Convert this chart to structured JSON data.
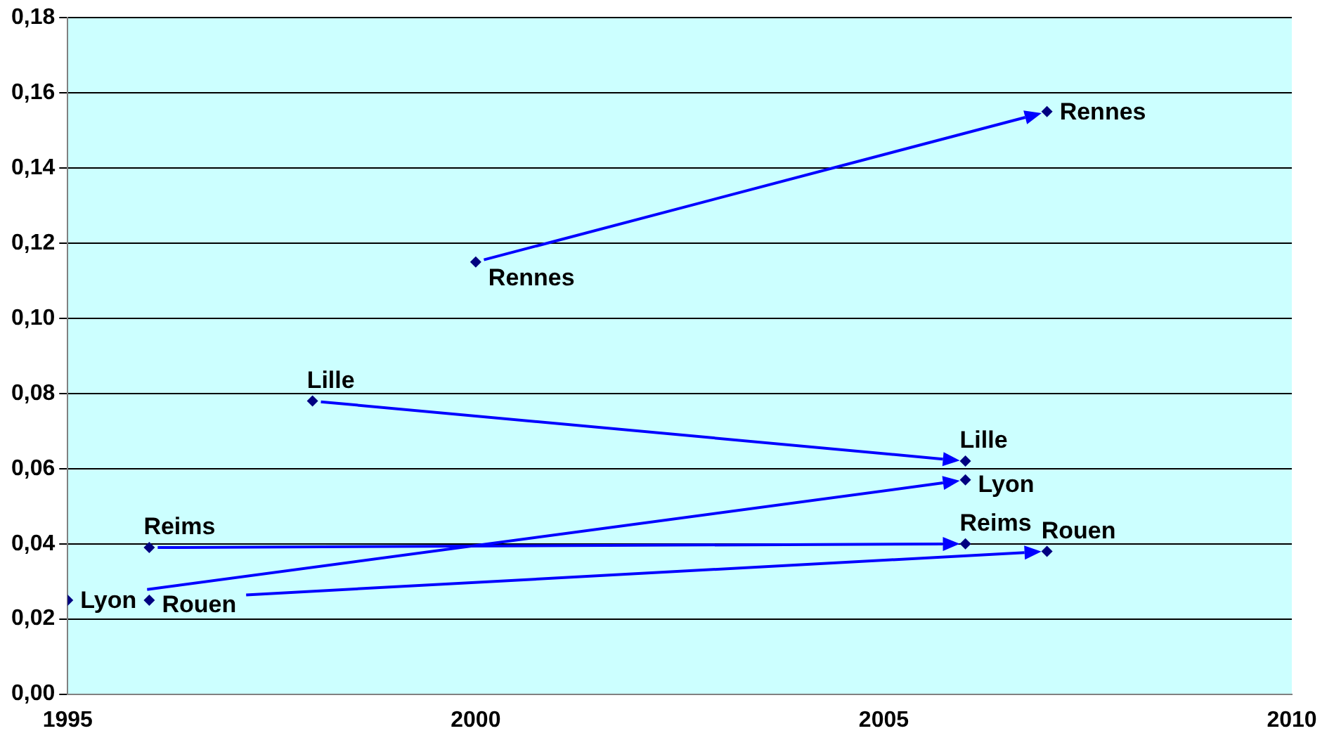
{
  "chart_data": {
    "type": "scatter",
    "legend": false,
    "grid": "y",
    "marker": "diamond",
    "xlim": [
      1995,
      2010
    ],
    "xticks": [
      1995,
      2000,
      2005,
      2010
    ],
    "ylim": [
      0,
      0.18
    ],
    "yticks": [
      {
        "value": 0,
        "label": "0,00"
      },
      {
        "value": 0.02,
        "label": "0,02"
      },
      {
        "value": 0.04,
        "label": "0,04"
      },
      {
        "value": 0.06,
        "label": "0,06"
      },
      {
        "value": 0.08,
        "label": "0,08"
      },
      {
        "value": 0.1,
        "label": "0,10"
      },
      {
        "value": 0.12,
        "label": "0,12"
      },
      {
        "value": 0.14,
        "label": "0,14"
      },
      {
        "value": 0.16,
        "label": "0,16"
      },
      {
        "value": 0.18,
        "label": "0,18"
      }
    ],
    "series": [
      {
        "name": "Rennes",
        "color": "#000080",
        "x": [
          2000,
          2007
        ],
        "values": [
          0.115,
          0.155
        ]
      },
      {
        "name": "Lille",
        "color": "#000080",
        "x": [
          1998,
          2006
        ],
        "values": [
          0.078,
          0.062
        ]
      },
      {
        "name": "Lyon",
        "color": "#000080",
        "x": [
          1995,
          2006
        ],
        "values": [
          0.025,
          0.057
        ]
      },
      {
        "name": "Reims",
        "color": "#000080",
        "x": [
          1996,
          2006
        ],
        "values": [
          0.039,
          0.04
        ]
      },
      {
        "name": "Rouen",
        "color": "#000080",
        "x": [
          1996,
          2007
        ],
        "values": [
          0.025,
          0.038
        ]
      }
    ]
  }
}
